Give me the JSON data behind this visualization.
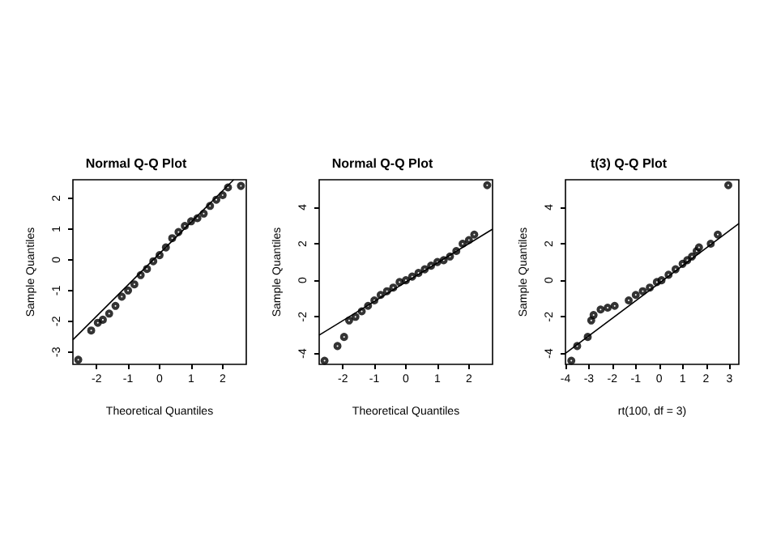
{
  "chart_data": [
    {
      "type": "scatter",
      "title": "Normal Q-Q Plot",
      "xlabel": "Theoretical Quantiles",
      "ylabel": "Sample Quantiles",
      "xlim": [
        -2.75,
        2.75
      ],
      "ylim": [
        -3.4,
        2.6
      ],
      "xticks": [
        -2,
        -1,
        0,
        1,
        2
      ],
      "yticks": [
        -3,
        -2,
        -1,
        0,
        1,
        2
      ],
      "series": [
        {
          "marker": "circle",
          "color": "#000000",
          "x": [
            -2.58,
            -2.17,
            -1.96,
            -1.8,
            -1.6,
            -1.4,
            -1.2,
            -1.0,
            -0.8,
            -0.6,
            -0.4,
            -0.2,
            0,
            0.2,
            0.4,
            0.6,
            0.8,
            1.0,
            1.2,
            1.4,
            1.6,
            1.8,
            2.0,
            2.17,
            2.58
          ],
          "values": [
            -3.25,
            -2.3,
            -2.05,
            -1.95,
            -1.75,
            -1.5,
            -1.2,
            -1.0,
            -0.8,
            -0.5,
            -0.3,
            -0.05,
            0.15,
            0.4,
            0.7,
            0.9,
            1.1,
            1.25,
            1.35,
            1.5,
            1.75,
            1.95,
            2.1,
            2.35,
            2.4
          ]
        },
        {
          "type": "line",
          "marker": "none",
          "color": "#000000",
          "x": [
            -2.75,
            2.35
          ],
          "values": [
            -2.6,
            2.6
          ]
        }
      ]
    },
    {
      "type": "scatter",
      "title": "Normal Q-Q Plot",
      "xlabel": "Theoretical Quantiles",
      "ylabel": "Sample Quantiles",
      "xlim": [
        -2.75,
        2.75
      ],
      "ylim": [
        -4.6,
        5.5
      ],
      "xticks": [
        -2,
        -1,
        0,
        1,
        2
      ],
      "yticks": [
        -4,
        -2,
        0,
        2,
        4
      ],
      "series": [
        {
          "marker": "circle",
          "color": "#000000",
          "x": [
            -2.58,
            -2.17,
            -1.96,
            -1.8,
            -1.6,
            -1.4,
            -1.2,
            -1.0,
            -0.8,
            -0.6,
            -0.4,
            -0.2,
            0,
            0.2,
            0.4,
            0.6,
            0.8,
            1.0,
            1.2,
            1.4,
            1.6,
            1.8,
            2.0,
            2.17,
            2.58
          ],
          "values": [
            -4.4,
            -3.6,
            -3.1,
            -2.2,
            -2.0,
            -1.7,
            -1.4,
            -1.1,
            -0.8,
            -0.6,
            -0.4,
            -0.1,
            0,
            0.2,
            0.4,
            0.6,
            0.8,
            1.0,
            1.1,
            1.3,
            1.6,
            2.0,
            2.2,
            2.5,
            5.2
          ]
        },
        {
          "type": "line",
          "marker": "none",
          "color": "#000000",
          "x": [
            -2.75,
            2.75
          ],
          "values": [
            -3.0,
            2.8
          ]
        }
      ]
    },
    {
      "type": "scatter",
      "title": "t(3) Q-Q Plot",
      "xlabel": "rt(100, df = 3)",
      "ylabel": "Sample Quantiles",
      "xlim": [
        -4.0,
        3.4
      ],
      "ylim": [
        -4.6,
        5.5
      ],
      "xticks": [
        -4,
        -3,
        -2,
        -1,
        0,
        1,
        2,
        3
      ],
      "yticks": [
        -4,
        -2,
        0,
        2,
        4
      ],
      "series": [
        {
          "marker": "circle",
          "color": "#000000",
          "x": [
            -3.75,
            -3.5,
            -3.05,
            -2.9,
            -2.8,
            -2.5,
            -2.2,
            -1.9,
            -1.3,
            -1.0,
            -0.7,
            -0.4,
            -0.1,
            0.1,
            0.4,
            0.7,
            1.0,
            1.2,
            1.4,
            1.6,
            1.7,
            2.2,
            2.5,
            2.95
          ],
          "values": [
            -4.4,
            -3.6,
            -3.1,
            -2.2,
            -1.9,
            -1.6,
            -1.5,
            -1.4,
            -1.1,
            -0.8,
            -0.6,
            -0.4,
            -0.1,
            0.0,
            0.3,
            0.6,
            0.9,
            1.1,
            1.3,
            1.6,
            1.8,
            2.0,
            2.5,
            5.2
          ]
        },
        {
          "type": "line",
          "marker": "none",
          "color": "#000000",
          "x": [
            -4.0,
            3.4
          ],
          "values": [
            -4.0,
            3.1
          ]
        }
      ]
    }
  ]
}
